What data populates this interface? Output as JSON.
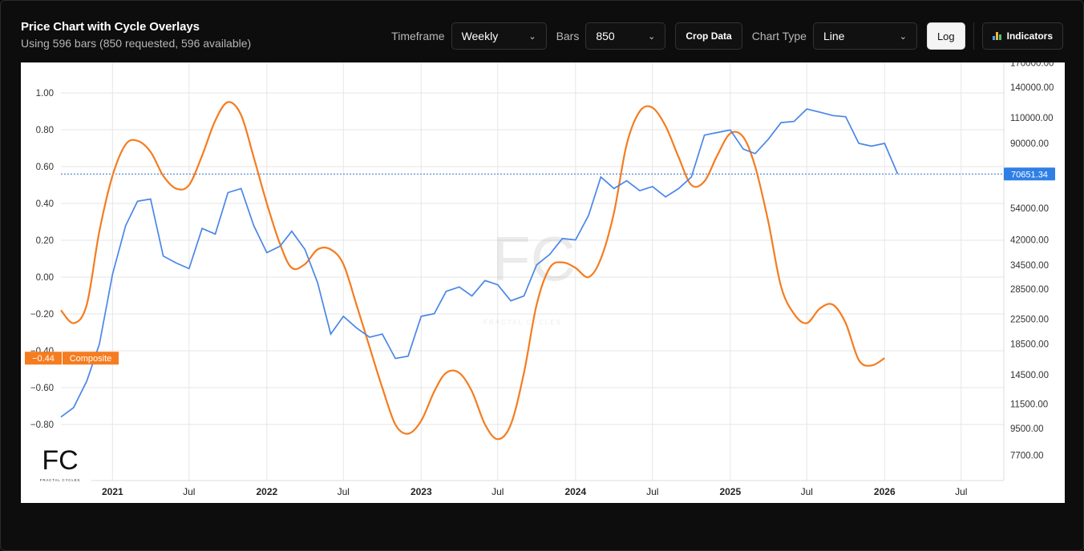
{
  "header": {
    "title": "Price Chart with Cycle Overlays",
    "subtitle": "Using 596 bars (850 requested, 596 available)"
  },
  "controls": {
    "timeframe_label": "Timeframe",
    "timeframe_value": "Weekly",
    "bars_label": "Bars",
    "bars_value": "850",
    "crop_label": "Crop Data",
    "chart_type_label": "Chart Type",
    "chart_type_value": "Line",
    "log_label": "Log",
    "indicators_label": "Indicators"
  },
  "colors": {
    "price": "#4a86e8",
    "composite": "#f57c1f",
    "grid": "#e6e6e6",
    "price_tag": "#2f7fe6"
  },
  "chart_data": {
    "type": "line",
    "x_ticks": [
      "2021",
      "Jul",
      "2022",
      "Jul",
      "2023",
      "Jul",
      "2024",
      "Jul",
      "2025",
      "Jul",
      "2026",
      "Jul"
    ],
    "left_axis": {
      "ticks": [
        "1.00",
        "0.80",
        "0.60",
        "0.40",
        "0.20",
        "0.00",
        "−0.20",
        "−0.40",
        "−0.60",
        "−0.80"
      ],
      "ylim": [
        -1.0,
        1.1
      ]
    },
    "right_axis": {
      "scale": "log",
      "ticks": [
        "170000.00",
        "140000.00",
        "110000.00",
        "90000.00",
        "54000.00",
        "42000.00",
        "34500.00",
        "28500.00",
        "22500.00",
        "18500.00",
        "14500.00",
        "11500.00",
        "9500.00",
        "7700.00"
      ]
    },
    "last_price_label": "70651.34",
    "composite_label": "Composite",
    "composite_value_label": "−0.44",
    "series": [
      {
        "name": "Price",
        "axis": "right",
        "points": [
          [
            "2020-09-01",
            10400
          ],
          [
            "2020-10-01",
            11200
          ],
          [
            "2020-11-01",
            13800
          ],
          [
            "2020-12-01",
            18500
          ],
          [
            "2021-01-01",
            32000
          ],
          [
            "2021-02-01",
            47000
          ],
          [
            "2021-03-01",
            57000
          ],
          [
            "2021-04-01",
            58000
          ],
          [
            "2021-05-01",
            37000
          ],
          [
            "2021-06-01",
            35000
          ],
          [
            "2021-07-01",
            33500
          ],
          [
            "2021-08-01",
            46000
          ],
          [
            "2021-09-01",
            44000
          ],
          [
            "2021-10-01",
            61000
          ],
          [
            "2021-11-01",
            63000
          ],
          [
            "2021-12-01",
            47000
          ],
          [
            "2022-01-01",
            38000
          ],
          [
            "2022-02-01",
            40000
          ],
          [
            "2022-03-01",
            45000
          ],
          [
            "2022-04-01",
            39000
          ],
          [
            "2022-05-01",
            30000
          ],
          [
            "2022-06-01",
            20000
          ],
          [
            "2022-07-01",
            23000
          ],
          [
            "2022-08-01",
            21000
          ],
          [
            "2022-09-01",
            19500
          ],
          [
            "2022-10-01",
            20000
          ],
          [
            "2022-11-01",
            16500
          ],
          [
            "2022-12-01",
            16800
          ],
          [
            "2023-01-01",
            23000
          ],
          [
            "2023-02-01",
            23500
          ],
          [
            "2023-03-01",
            28000
          ],
          [
            "2023-04-01",
            29000
          ],
          [
            "2023-05-01",
            27000
          ],
          [
            "2023-06-01",
            30500
          ],
          [
            "2023-07-01",
            29500
          ],
          [
            "2023-08-01",
            26000
          ],
          [
            "2023-09-01",
            27000
          ],
          [
            "2023-10-01",
            34500
          ],
          [
            "2023-11-01",
            37500
          ],
          [
            "2023-12-01",
            42500
          ],
          [
            "2024-01-01",
            42000
          ],
          [
            "2024-02-01",
            51000
          ],
          [
            "2024-03-01",
            69000
          ],
          [
            "2024-04-01",
            63000
          ],
          [
            "2024-05-01",
            67000
          ],
          [
            "2024-06-01",
            62000
          ],
          [
            "2024-07-01",
            64000
          ],
          [
            "2024-08-01",
            59000
          ],
          [
            "2024-09-01",
            63000
          ],
          [
            "2024-10-01",
            69000
          ],
          [
            "2024-11-01",
            96000
          ],
          [
            "2024-12-01",
            98000
          ],
          [
            "2025-01-01",
            100000
          ],
          [
            "2025-02-01",
            86000
          ],
          [
            "2025-03-01",
            83000
          ],
          [
            "2025-04-01",
            93000
          ],
          [
            "2025-05-01",
            106000
          ],
          [
            "2025-06-01",
            107000
          ],
          [
            "2025-07-01",
            118000
          ],
          [
            "2025-08-01",
            115000
          ],
          [
            "2025-09-01",
            112000
          ],
          [
            "2025-10-01",
            111000
          ],
          [
            "2025-11-01",
            90000
          ],
          [
            "2025-12-01",
            88000
          ],
          [
            "2026-01-01",
            90000
          ],
          [
            "2026-02-01",
            70651
          ]
        ]
      },
      {
        "name": "Composite",
        "axis": "left",
        "points": [
          [
            "2020-09-01",
            -0.18
          ],
          [
            "2020-10-01",
            -0.25
          ],
          [
            "2020-11-01",
            -0.15
          ],
          [
            "2020-12-01",
            0.25
          ],
          [
            "2021-01-01",
            0.55
          ],
          [
            "2021-02-01",
            0.72
          ],
          [
            "2021-03-01",
            0.74
          ],
          [
            "2021-04-01",
            0.68
          ],
          [
            "2021-05-01",
            0.55
          ],
          [
            "2021-06-01",
            0.48
          ],
          [
            "2021-07-01",
            0.5
          ],
          [
            "2021-08-01",
            0.66
          ],
          [
            "2021-09-01",
            0.85
          ],
          [
            "2021-10-01",
            0.95
          ],
          [
            "2021-11-01",
            0.88
          ],
          [
            "2021-12-01",
            0.65
          ],
          [
            "2022-01-01",
            0.4
          ],
          [
            "2022-02-01",
            0.18
          ],
          [
            "2022-03-01",
            0.05
          ],
          [
            "2022-04-01",
            0.07
          ],
          [
            "2022-05-01",
            0.15
          ],
          [
            "2022-06-01",
            0.15
          ],
          [
            "2022-07-01",
            0.07
          ],
          [
            "2022-08-01",
            -0.15
          ],
          [
            "2022-09-01",
            -0.38
          ],
          [
            "2022-10-01",
            -0.6
          ],
          [
            "2022-11-01",
            -0.8
          ],
          [
            "2022-12-01",
            -0.85
          ],
          [
            "2023-01-01",
            -0.78
          ],
          [
            "2023-02-01",
            -0.62
          ],
          [
            "2023-03-01",
            -0.52
          ],
          [
            "2023-04-01",
            -0.52
          ],
          [
            "2023-05-01",
            -0.62
          ],
          [
            "2023-06-01",
            -0.8
          ],
          [
            "2023-07-01",
            -0.88
          ],
          [
            "2023-08-01",
            -0.8
          ],
          [
            "2023-09-01",
            -0.52
          ],
          [
            "2023-10-01",
            -0.15
          ],
          [
            "2023-11-01",
            0.05
          ],
          [
            "2023-12-01",
            0.08
          ],
          [
            "2024-01-01",
            0.05
          ],
          [
            "2024-02-01",
            0.0
          ],
          [
            "2024-03-01",
            0.1
          ],
          [
            "2024-04-01",
            0.35
          ],
          [
            "2024-05-01",
            0.72
          ],
          [
            "2024-06-01",
            0.9
          ],
          [
            "2024-07-01",
            0.92
          ],
          [
            "2024-08-01",
            0.82
          ],
          [
            "2024-09-01",
            0.65
          ],
          [
            "2024-10-01",
            0.5
          ],
          [
            "2024-11-01",
            0.52
          ],
          [
            "2024-12-01",
            0.66
          ],
          [
            "2025-01-01",
            0.78
          ],
          [
            "2025-02-01",
            0.76
          ],
          [
            "2025-03-01",
            0.6
          ],
          [
            "2025-04-01",
            0.3
          ],
          [
            "2025-05-01",
            -0.05
          ],
          [
            "2025-06-01",
            -0.2
          ],
          [
            "2025-07-01",
            -0.25
          ],
          [
            "2025-08-01",
            -0.17
          ],
          [
            "2025-09-01",
            -0.15
          ],
          [
            "2025-10-01",
            -0.25
          ],
          [
            "2025-11-01",
            -0.45
          ],
          [
            "2025-12-01",
            -0.48
          ],
          [
            "2026-01-01",
            -0.44
          ]
        ]
      }
    ],
    "grid": true,
    "legend": "none"
  },
  "brand": {
    "logo_text": "FC",
    "logo_caption": "FRACTAL CYCLES",
    "watermark_text": "FC",
    "watermark_caption": "FRACTAL CYCLES"
  }
}
